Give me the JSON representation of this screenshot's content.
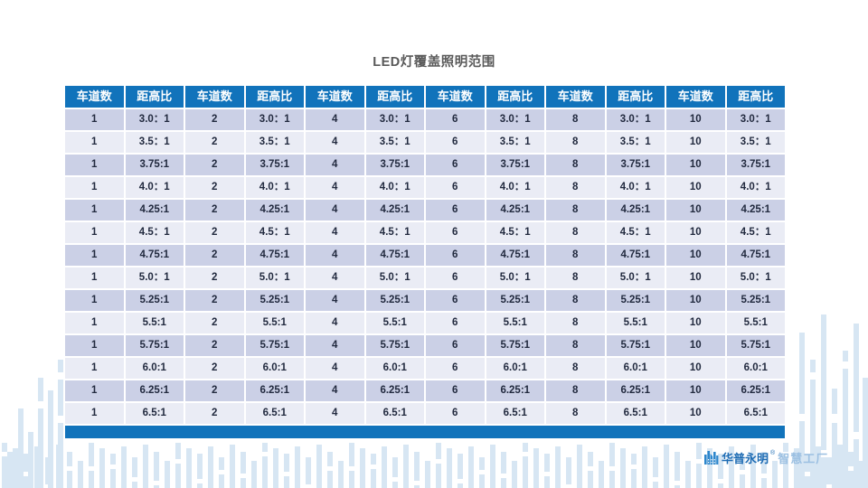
{
  "title": "LED灯覆盖照明范围",
  "table": {
    "header": [
      "车道数",
      "距高比",
      "车道数",
      "距高比",
      "车道数",
      "距高比",
      "车道数",
      "距高比",
      "车道数",
      "距高比",
      "车道数",
      "距高比"
    ],
    "lane_counts": [
      "1",
      "2",
      "4",
      "6",
      "8",
      "10"
    ],
    "ratios": [
      "3.0：1",
      "3.5：1",
      "3.75:1",
      "4.0：1",
      "4.25:1",
      "4.5：1",
      "4.75:1",
      "5.0：1",
      "5.25:1",
      "5.5:1",
      "5.75:1",
      "6.0:1",
      "6.25:1",
      "6.5:1"
    ],
    "rows": [
      [
        "1",
        "3.0：1",
        "2",
        "3.0：1",
        "4",
        "3.0：1",
        "6",
        "3.0：1",
        "8",
        "3.0：1",
        "10",
        "3.0：1"
      ],
      [
        "1",
        "3.5：1",
        "2",
        "3.5：1",
        "4",
        "3.5：1",
        "6",
        "3.5：1",
        "8",
        "3.5：1",
        "10",
        "3.5：1"
      ],
      [
        "1",
        "3.75:1",
        "2",
        "3.75:1",
        "4",
        "3.75:1",
        "6",
        "3.75:1",
        "8",
        "3.75:1",
        "10",
        "3.75:1"
      ],
      [
        "1",
        "4.0：1",
        "2",
        "4.0：1",
        "4",
        "4.0：1",
        "6",
        "4.0：1",
        "8",
        "4.0：1",
        "10",
        "4.0：1"
      ],
      [
        "1",
        "4.25:1",
        "2",
        "4.25:1",
        "4",
        "4.25:1",
        "6",
        "4.25:1",
        "8",
        "4.25:1",
        "10",
        "4.25:1"
      ],
      [
        "1",
        "4.5：1",
        "2",
        "4.5：1",
        "4",
        "4.5：1",
        "6",
        "4.5：1",
        "8",
        "4.5：1",
        "10",
        "4.5：1"
      ],
      [
        "1",
        "4.75:1",
        "2",
        "4.75:1",
        "4",
        "4.75:1",
        "6",
        "4.75:1",
        "8",
        "4.75:1",
        "10",
        "4.75:1"
      ],
      [
        "1",
        "5.0：1",
        "2",
        "5.0：1",
        "4",
        "5.0：1",
        "6",
        "5.0：1",
        "8",
        "5.0：1",
        "10",
        "5.0：1"
      ],
      [
        "1",
        "5.25:1",
        "2",
        "5.25:1",
        "4",
        "5.25:1",
        "6",
        "5.25:1",
        "8",
        "5.25:1",
        "10",
        "5.25:1"
      ],
      [
        "1",
        "5.5:1",
        "2",
        "5.5:1",
        "4",
        "5.5:1",
        "6",
        "5.5:1",
        "8",
        "5.5:1",
        "10",
        "5.5:1"
      ],
      [
        "1",
        "5.75:1",
        "2",
        "5.75:1",
        "4",
        "5.75:1",
        "6",
        "5.75:1",
        "8",
        "5.75:1",
        "10",
        "5.75:1"
      ],
      [
        "1",
        "6.0:1",
        "2",
        "6.0:1",
        "4",
        "6.0:1",
        "6",
        "6.0:1",
        "8",
        "6.0:1",
        "10",
        "6.0:1"
      ],
      [
        "1",
        "6.25:1",
        "2",
        "6.25:1",
        "4",
        "6.25:1",
        "6",
        "6.25:1",
        "8",
        "6.25:1",
        "10",
        "6.25:1"
      ],
      [
        "1",
        "6.5:1",
        "2",
        "6.5:1",
        "4",
        "6.5:1",
        "6",
        "6.5:1",
        "8",
        "6.5:1",
        "10",
        "6.5:1"
      ]
    ]
  },
  "logo": {
    "brand": "华普永明",
    "reg": "®",
    "suffix": "智慧工厂"
  },
  "colors": {
    "header_blue": "#1173bb",
    "row_dark": "#cbd0e6",
    "row_light": "#eaecf5",
    "bar_light": "#d7e6f3",
    "title_gray": "#595959",
    "brand_blue": "#1e6cb4",
    "suffix_blue": "#9cc0e2",
    "logo_icon_blue": "#2c86cc"
  }
}
